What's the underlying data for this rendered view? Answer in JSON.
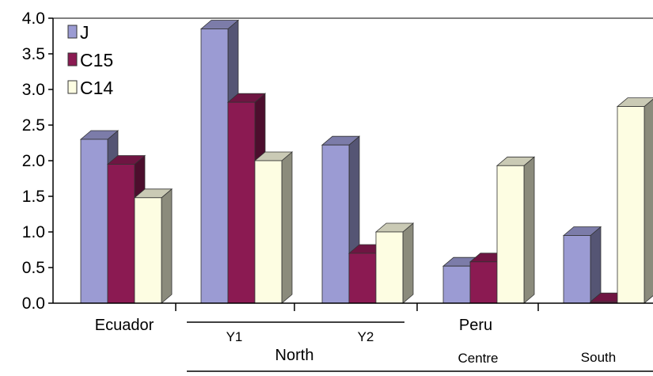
{
  "chart_data": {
    "type": "bar",
    "style": "3d-clustered",
    "ylim": [
      0,
      4.0
    ],
    "ytick_step": 0.5,
    "yticks": [
      "0.0",
      "0.5",
      "1.0",
      "1.5",
      "2.0",
      "2.5",
      "3.0",
      "3.5",
      "4.0"
    ],
    "legend_position": "top-left",
    "categories": [
      "Ecuador",
      "Y1",
      "Y2",
      "Centre",
      "South"
    ],
    "group_labels": [
      "Ecuador",
      "Y1",
      "North",
      "Y2",
      "Peru",
      "Centre",
      "South"
    ],
    "series": [
      {
        "name": "J",
        "color": "#9b9bd3",
        "values": [
          2.3,
          3.85,
          2.22,
          0.52,
          0.95
        ]
      },
      {
        "name": "C15",
        "color": "#8b1a52",
        "values": [
          1.95,
          2.82,
          0.7,
          0.58,
          0.02
        ]
      },
      {
        "name": "C14",
        "color": "#fdfde2",
        "values": [
          1.48,
          2.0,
          1.0,
          1.93,
          2.76
        ]
      }
    ]
  }
}
